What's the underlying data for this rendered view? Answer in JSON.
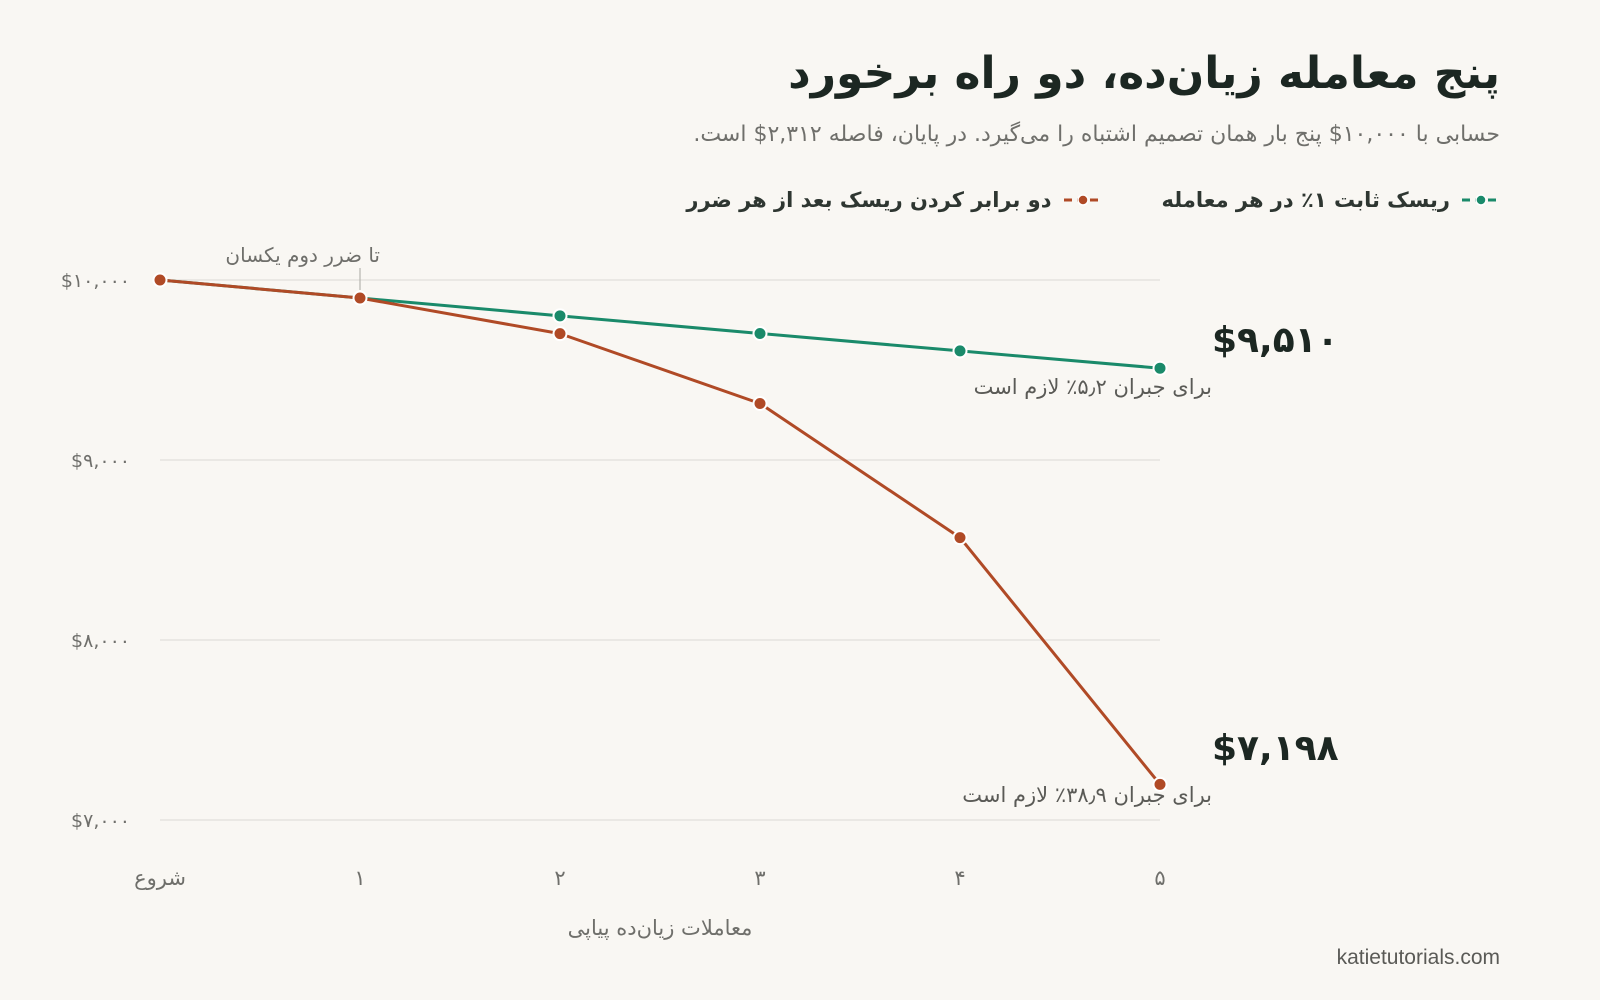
{
  "header": {
    "title": "پنج معامله زیان‌ده، دو راه برخورد",
    "subtitle": "حسابی با ۱۰,۰۰۰$ پنج بار همان تصمیم اشتباه را می‌گیرد. در پایان، فاصله ۲,۳۱۲$ است."
  },
  "colors": {
    "fixed": "#1a8a6a",
    "double": "#b04a26",
    "grid": "#e6e4df",
    "axis_text": "#6f6f6b"
  },
  "chart_data": {
    "type": "line",
    "categories": [
      "شروع",
      "۱",
      "۲",
      "۳",
      "۴",
      "۵"
    ],
    "xlabel": "معاملات زیان‌ده پیاپی",
    "ylabel": "",
    "ylim": [
      7000,
      10000
    ],
    "yticks": [
      7000,
      8000,
      9000,
      10000
    ],
    "ytick_labels": [
      "$۷,۰۰۰",
      "$۸,۰۰۰",
      "$۹,۰۰۰",
      "$۱۰,۰۰۰"
    ],
    "grid": true,
    "legend_position": "top-right",
    "series": [
      {
        "name": "ریسک ثابت ۱٪ در هر معامله",
        "color": "#1a8a6a",
        "values": [
          10000,
          9900,
          9801,
          9703,
          9606,
          9510
        ],
        "end_value_label": "$۹,۵۱۰",
        "end_note": "برای جبران ۵٫۲٪ لازم است"
      },
      {
        "name": "دو برابر کردن ریسک بعد از هر ضرر",
        "color": "#b04a26",
        "values": [
          10000,
          9900,
          9702,
          9314,
          8569,
          7198
        ],
        "end_value_label": "$۷,۱۹۸",
        "end_note": "برای جبران ۳۸٫۹٪ لازم است"
      }
    ],
    "annotation": {
      "text": "تا ضرر دوم یکسان",
      "at_category_index": 1
    }
  },
  "footer": {
    "source": "katietutorials.com"
  }
}
